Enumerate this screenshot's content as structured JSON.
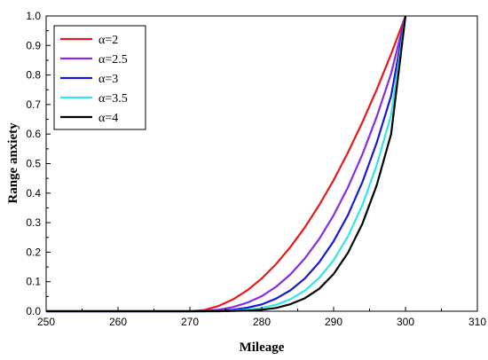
{
  "chart_data": {
    "type": "line",
    "title": "",
    "xlabel": "Mileage",
    "ylabel": "Range anxiety",
    "xlim": [
      250,
      310
    ],
    "ylim": [
      0.0,
      1.0
    ],
    "x_ticks": [
      "250",
      "260",
      "270",
      "280",
      "290",
      "300",
      "310"
    ],
    "y_ticks": [
      "0.0",
      "0.1",
      "0.2",
      "0.3",
      "0.4",
      "0.5",
      "0.6",
      "0.7",
      "0.8",
      "0.9",
      "1.0"
    ],
    "grid": false,
    "legend_position": "top-left",
    "x": [
      270,
      272,
      274,
      276,
      278,
      280,
      282,
      284,
      286,
      288,
      290,
      292,
      294,
      296,
      298,
      300
    ],
    "series": [
      {
        "name": "α=2",
        "color": "#e8191a",
        "values": [
          0.0,
          0.004,
          0.018,
          0.04,
          0.071,
          0.111,
          0.16,
          0.218,
          0.284,
          0.36,
          0.444,
          0.538,
          0.64,
          0.751,
          0.871,
          1.0
        ]
      },
      {
        "name": "α=2.5",
        "color": "#8a2be2",
        "values": [
          0.0,
          0.001,
          0.005,
          0.014,
          0.029,
          0.051,
          0.083,
          0.125,
          0.179,
          0.245,
          0.325,
          0.42,
          0.531,
          0.659,
          0.805,
          1.0
        ]
      },
      {
        "name": "α=3",
        "color": "#1a1ad6",
        "values": [
          0.0,
          0.0,
          0.002,
          0.005,
          0.012,
          0.023,
          0.043,
          0.071,
          0.111,
          0.166,
          0.237,
          0.326,
          0.437,
          0.571,
          0.729,
          1.0
        ]
      },
      {
        "name": "α=3.5",
        "color": "#33e6e6",
        "values": [
          0.0,
          0.0,
          0.0,
          0.002,
          0.005,
          0.011,
          0.022,
          0.041,
          0.07,
          0.113,
          0.173,
          0.254,
          0.359,
          0.495,
          0.664,
          1.0
        ]
      },
      {
        "name": "α=4",
        "color": "#000000",
        "values": [
          0.0,
          0.0,
          0.0,
          0.001,
          0.002,
          0.005,
          0.011,
          0.024,
          0.044,
          0.076,
          0.126,
          0.198,
          0.296,
          0.427,
          0.6,
          1.0
        ]
      }
    ]
  }
}
